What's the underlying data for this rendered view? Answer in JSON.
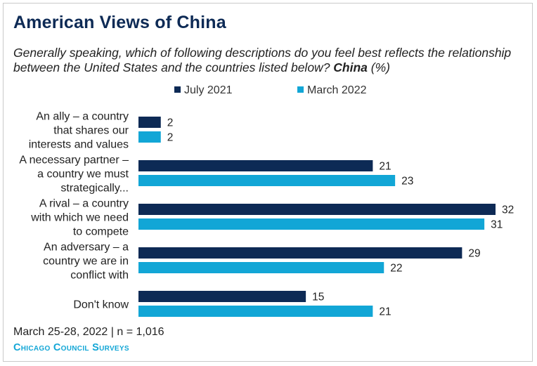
{
  "header": {
    "title": "American Views of China",
    "subtitle_part1": "Generally speaking, which of following descriptions do you feel best reflects the relationship between the United States and the countries listed below? ",
    "subtitle_bold": "China",
    "subtitle_part2": " (%)"
  },
  "legend": [
    {
      "label": "July 2021",
      "color": "#0d2a55"
    },
    {
      "label": "March 2022",
      "color": "#12a6d6"
    }
  ],
  "footer": {
    "note": "March 25-28, 2022 | n = 1,016",
    "brand": "Chicago Council Surveys"
  },
  "chart_data": {
    "type": "bar",
    "orientation": "horizontal",
    "categories": [
      [
        "An ally – a country",
        "that shares our",
        "interests and values"
      ],
      [
        "A necessary partner –",
        "a country we must",
        "strategically..."
      ],
      [
        "A rival – a country",
        "with which we need",
        "to compete"
      ],
      [
        "An adversary – a",
        "country we are in",
        "conflict with"
      ],
      [
        "Don't know"
      ]
    ],
    "series": [
      {
        "name": "July 2021",
        "color": "#0d2a55",
        "values": [
          2,
          21,
          32,
          29,
          15
        ]
      },
      {
        "name": "March 2022",
        "color": "#12a6d6",
        "values": [
          2,
          23,
          31,
          22,
          21
        ]
      }
    ],
    "xlim": [
      0,
      32
    ],
    "grid": false,
    "legend_position": "top"
  }
}
